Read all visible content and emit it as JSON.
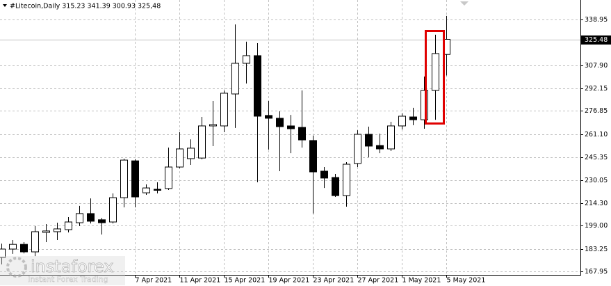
{
  "chart_data": {
    "type": "candlestick",
    "title": "#Litecoin,Daily  315.23 341.39 300.93 325,48",
    "watermark": "instaforex",
    "watermark_subtitle": "Instant Forex Trading",
    "price_line": 325.48,
    "categories": [
      null,
      null,
      null,
      null,
      null,
      null,
      null,
      null,
      null,
      null,
      null,
      null,
      "7 Apr 2021",
      null,
      null,
      null,
      "11 Apr 2021",
      null,
      null,
      null,
      "15 Apr 2021",
      null,
      null,
      null,
      "19 Apr 2021",
      null,
      null,
      null,
      "23 Apr 2021",
      null,
      null,
      null,
      "27 Apr 2021",
      null,
      null,
      null,
      "1 May 2021",
      null,
      null,
      null,
      "5 May 2021"
    ],
    "open": [
      177.4,
      183.1,
      186.3,
      181.2,
      194.4,
      194.9,
      196.3,
      201.0,
      207.2,
      203.0,
      201.5,
      218.0,
      243.0,
      221.3,
      223.7,
      224.2,
      238.8,
      244.5,
      244.9,
      266.7,
      266.7,
      288.4,
      309.2,
      314.4,
      273.8,
      271.9,
      266.7,
      265.7,
      256.8,
      236.0,
      231.7,
      219.4,
      241.2,
      261.0,
      253.4,
      251.1,
      266.7,
      272.8,
      270.9,
      290.8,
      315.23
    ],
    "high": [
      186.8,
      189.2,
      187.8,
      198.7,
      200.1,
      201.0,
      204.8,
      212.4,
      217.5,
      204.3,
      220.9,
      244.5,
      244.0,
      227.0,
      228.4,
      252.0,
      262.4,
      257.6,
      272.8,
      283.7,
      290.8,
      335.6,
      323.9,
      322.9,
      283.7,
      276.6,
      274.2,
      290.8,
      260.1,
      238.8,
      234.1,
      242.1,
      263.8,
      266.2,
      261.5,
      269.5,
      275.2,
      279.0,
      300.2,
      328.6,
      341.39
    ],
    "low": [
      172.7,
      179.8,
      180.2,
      178.3,
      187.8,
      189.2,
      194.4,
      198.7,
      200.5,
      193.0,
      200.5,
      211.4,
      211.4,
      219.9,
      220.9,
      223.2,
      237.9,
      240.2,
      244.0,
      253.0,
      262.4,
      265.3,
      295.5,
      228.5,
      250.6,
      236.0,
      248.2,
      252.0,
      207.2,
      224.6,
      218.5,
      211.9,
      238.8,
      245.4,
      248.2,
      249.7,
      264.3,
      267.2,
      264.8,
      270.9,
      300.93
    ],
    "close": [
      183.1,
      186.3,
      181.2,
      194.9,
      195.4,
      196.8,
      201.5,
      207.2,
      202.0,
      201.0,
      218.0,
      243.5,
      218.5,
      224.6,
      223.0,
      238.8,
      251.1,
      251.6,
      266.7,
      267.6,
      288.9,
      309.2,
      314.4,
      273.3,
      271.9,
      266.2,
      264.8,
      257.2,
      235.5,
      231.3,
      219.4,
      240.7,
      261.0,
      253.0,
      251.1,
      266.7,
      273.3,
      270.9,
      290.8,
      315.8,
      325.48
    ],
    "up_color": "#ffffff",
    "down_color": "#000000",
    "outline_color": "#000000",
    "ylim": [
      165.6,
      351.7
    ],
    "yticks": [
      338.95,
      {
        "value": 307.9,
        "label": "307.90"
      },
      292.15,
      276.85,
      {
        "value": 261.1,
        "label": "261.10"
      },
      245.35,
      230.05,
      {
        "value": 214.3,
        "label": "214.30"
      },
      {
        "value": 199.0,
        "label": "199.00"
      },
      183.25,
      167.95
    ],
    "grid": true
  }
}
